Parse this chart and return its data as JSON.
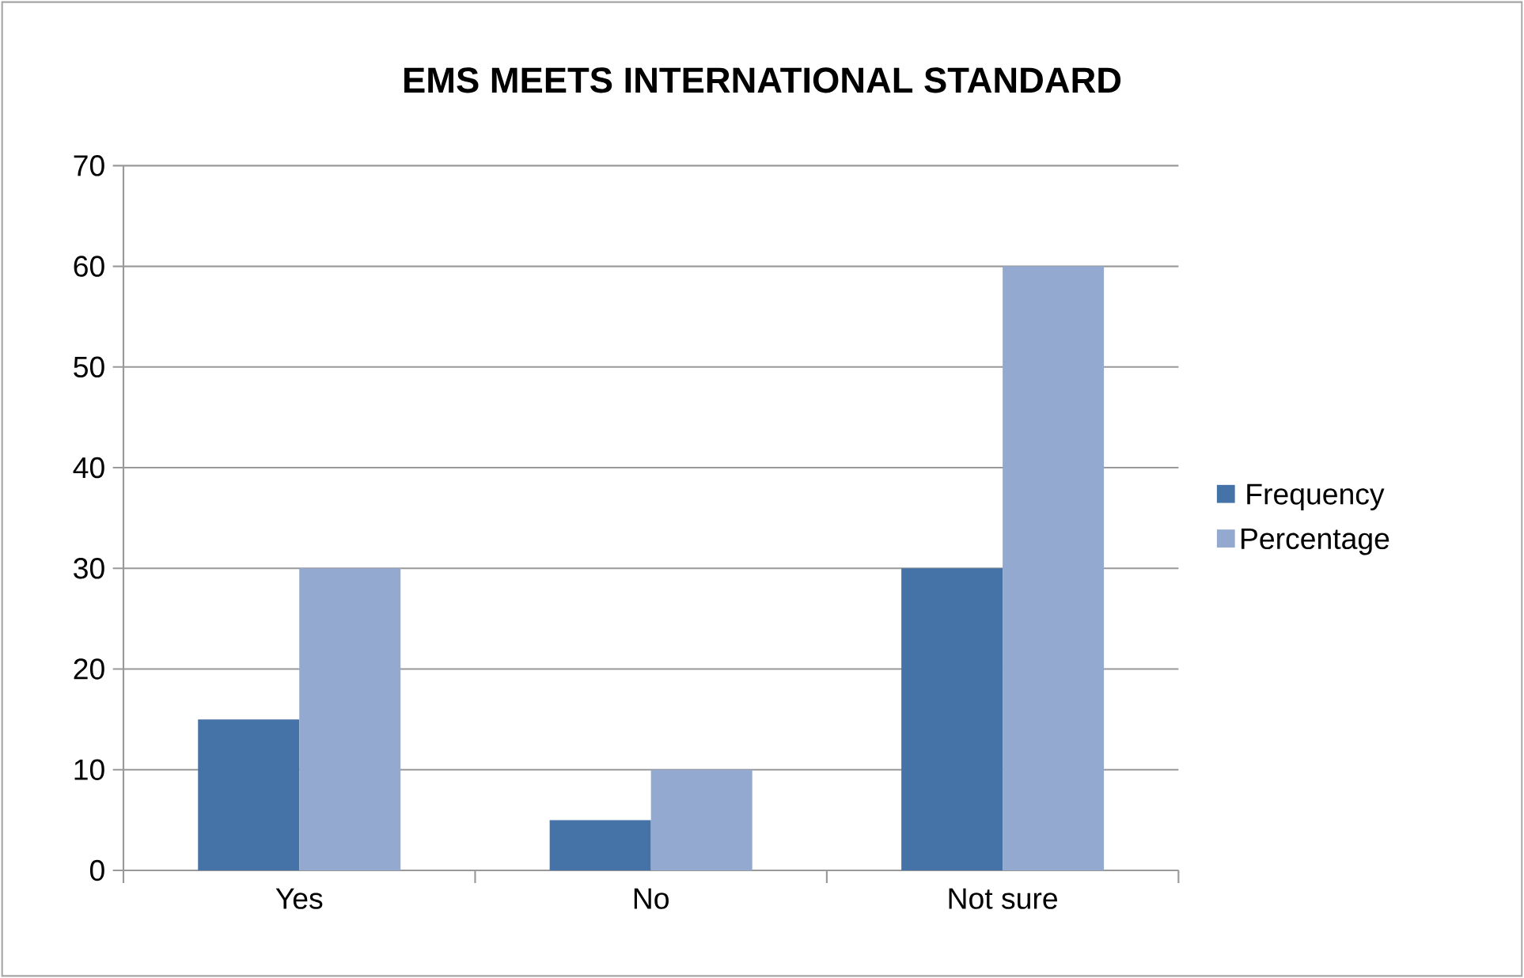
{
  "chart_data": {
    "type": "bar",
    "title": "EMS MEETS INTERNATIONAL STANDARD",
    "categories": [
      "Yes",
      "No",
      "Not sure"
    ],
    "series": [
      {
        "name": "Frequency",
        "color": "#4572a7",
        "values": [
          15,
          5,
          30
        ]
      },
      {
        "name": "Percentage",
        "color": "#93a9cf",
        "values": [
          30,
          10,
          60
        ]
      }
    ],
    "ylim": [
      0,
      70
    ],
    "yticks": [
      0,
      10,
      20,
      30,
      40,
      50,
      60,
      70
    ],
    "grid": "y",
    "legend": "right"
  }
}
